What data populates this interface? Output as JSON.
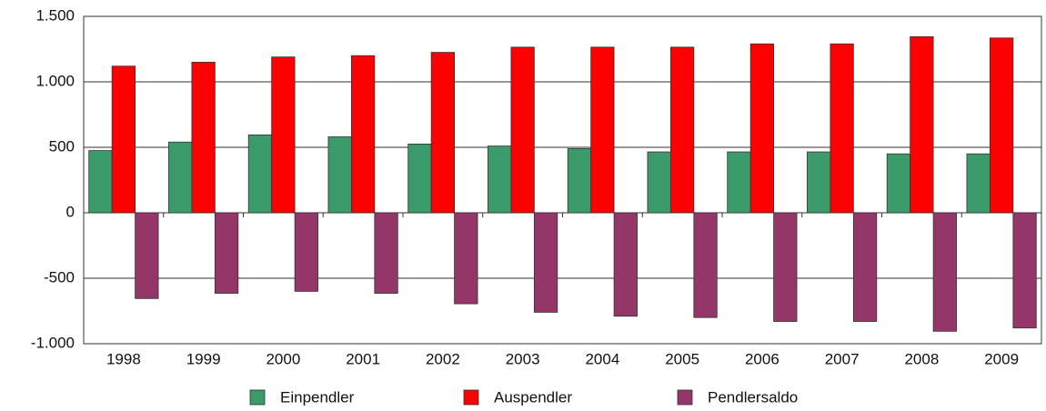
{
  "chart_data": {
    "type": "bar",
    "categories": [
      "1998",
      "1999",
      "2000",
      "2001",
      "2002",
      "2003",
      "2004",
      "2005",
      "2006",
      "2007",
      "2008",
      "2009"
    ],
    "series": [
      {
        "name": "Einpendler",
        "color": "#3a9a6a",
        "values": [
          475,
          540,
          595,
          580,
          525,
          510,
          490,
          465,
          465,
          465,
          450,
          450
        ]
      },
      {
        "name": "Auspendler",
        "color": "#ff0000",
        "values": [
          1120,
          1150,
          1190,
          1200,
          1225,
          1265,
          1265,
          1265,
          1290,
          1290,
          1345,
          1335
        ]
      },
      {
        "name": "Pendlersaldo",
        "color": "#943668",
        "values": [
          -655,
          -615,
          -600,
          -615,
          -695,
          -760,
          -790,
          -800,
          -830,
          -830,
          -905,
          -880
        ]
      }
    ],
    "ylim": [
      -1000,
      1500
    ],
    "yticks": [
      {
        "value": -1000,
        "label": "-1.000"
      },
      -500,
      0,
      500,
      {
        "value": 1000,
        "label": "1.000"
      },
      {
        "value": 1500,
        "label": "1.500"
      }
    ],
    "grid": true,
    "legend": "bottom"
  }
}
